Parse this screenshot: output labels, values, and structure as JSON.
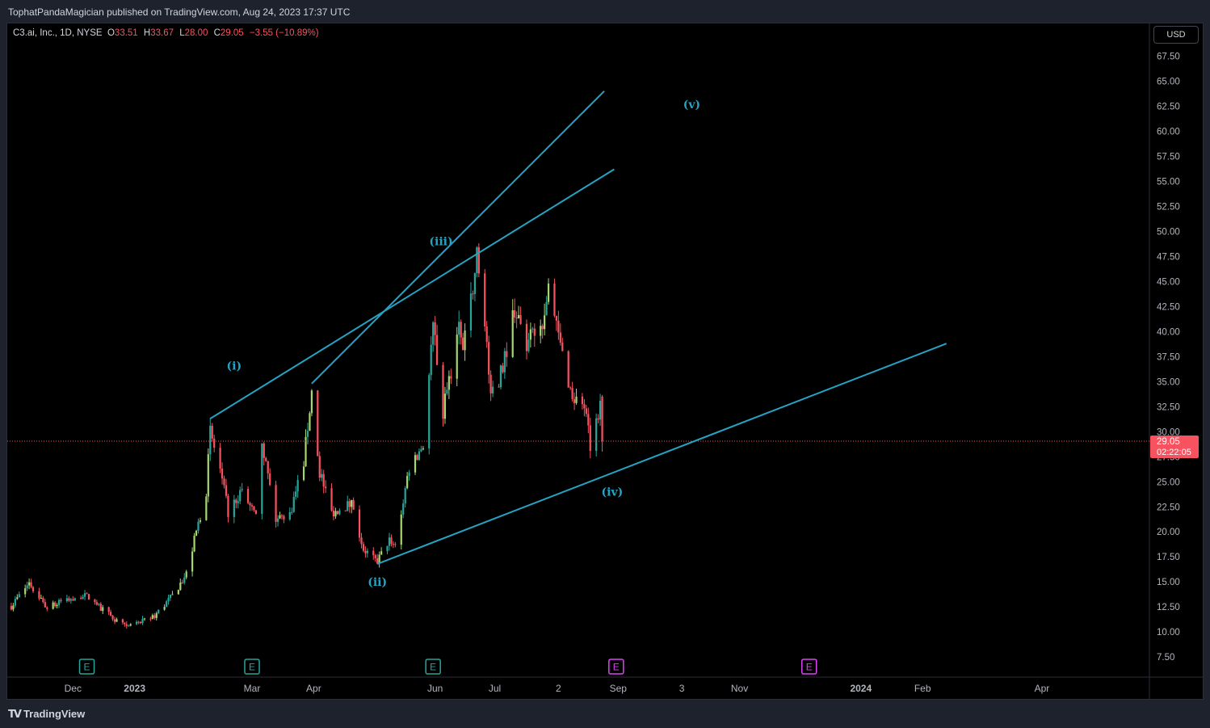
{
  "header": {
    "publisher_line": "TophatPandaMagician published on TradingView.com, Aug 24, 2023 17:37 UTC"
  },
  "legend": {
    "symbol": "C3.ai, Inc., 1D, NYSE",
    "open_label": "O",
    "open": "33.51",
    "high_label": "H",
    "high": "33.67",
    "low_label": "L",
    "low": "28.00",
    "close_label": "C",
    "close": "29.05",
    "change": "−3.55 (−10.89%)"
  },
  "currency": "USD",
  "footer": {
    "brand": "TradingView"
  },
  "colors": {
    "up": "#26a69a",
    "up_alt": "#a5d76e",
    "down": "#f7525f",
    "trendline": "#26a2c2",
    "price_line": "#f7525f",
    "earnings_past": "#26a69a",
    "earnings_future": "#e040fb"
  },
  "chart_data": {
    "type": "candlestick",
    "title": "",
    "xlabel": "",
    "ylabel": "",
    "ylim": [
      5.5,
      68.5
    ],
    "y_ticks": [
      "67.50",
      "65.00",
      "62.50",
      "60.00",
      "57.50",
      "55.00",
      "52.50",
      "50.00",
      "47.50",
      "45.00",
      "42.50",
      "40.00",
      "37.50",
      "35.00",
      "32.50",
      "30.00",
      "27.50",
      "25.00",
      "22.50",
      "20.00",
      "17.50",
      "15.00",
      "12.50",
      "10.00",
      "7.50"
    ],
    "x_ticks": [
      {
        "label": "Dec",
        "date": "2022-12-01"
      },
      {
        "label": "2023",
        "date": "2023-01-01"
      },
      {
        "label": "Mar",
        "date": "2023-03-01"
      },
      {
        "label": "Apr",
        "date": "2023-04-01"
      },
      {
        "label": "Jun",
        "date": "2023-06-01"
      },
      {
        "label": "Jul",
        "date": "2023-07-01"
      },
      {
        "label": "2",
        "date": "2023-08-02"
      },
      {
        "label": "Sep",
        "date": "2023-09-01"
      },
      {
        "label": "3",
        "date": "2023-10-03"
      },
      {
        "label": "Nov",
        "date": "2023-11-01"
      },
      {
        "label": "2024",
        "date": "2024-01-01"
      },
      {
        "label": "Feb",
        "date": "2024-02-01"
      },
      {
        "label": "Apr",
        "date": "2024-04-01"
      }
    ],
    "x_range": [
      "2022-10-29",
      "2024-05-25"
    ],
    "last_price": {
      "value": 29.05,
      "label": "29.05",
      "countdown": "02:22:05"
    },
    "anchors": [
      [
        "2022-10-31",
        12.6
      ],
      [
        "2022-11-09",
        14.9
      ],
      [
        "2022-11-18",
        12.4
      ],
      [
        "2022-11-30",
        13.4
      ],
      [
        "2022-12-08",
        13.6
      ],
      [
        "2022-12-16",
        12.2
      ],
      [
        "2022-12-28",
        10.4
      ],
      [
        "2023-01-10",
        11.4
      ],
      [
        "2023-01-20",
        13.6
      ],
      [
        "2023-01-27",
        15.8
      ],
      [
        "2023-02-06",
        24.2
      ],
      [
        "2023-02-08",
        30.0
      ],
      [
        "2023-02-13",
        26.0
      ],
      [
        "2023-02-17",
        22.0
      ],
      [
        "2023-02-24",
        24.2
      ],
      [
        "2023-03-03",
        21.3
      ],
      [
        "2023-03-06",
        29.0
      ],
      [
        "2023-03-13",
        21.2
      ],
      [
        "2023-03-20",
        21.8
      ],
      [
        "2023-03-27",
        27.0
      ],
      [
        "2023-03-31",
        34.0
      ],
      [
        "2023-04-04",
        26.0
      ],
      [
        "2023-04-10",
        22.0
      ],
      [
        "2023-04-20",
        22.8
      ],
      [
        "2023-04-26",
        18.3
      ],
      [
        "2023-05-03",
        17.0
      ],
      [
        "2023-05-09",
        19.3
      ],
      [
        "2023-05-12",
        18.7
      ],
      [
        "2023-05-19",
        26.5
      ],
      [
        "2023-05-26",
        28.7
      ],
      [
        "2023-05-31",
        40.5
      ],
      [
        "2023-06-05",
        32.0
      ],
      [
        "2023-06-13",
        40.5
      ],
      [
        "2023-06-15",
        38.0
      ],
      [
        "2023-06-20",
        44.5
      ],
      [
        "2023-06-22",
        47.5
      ],
      [
        "2023-06-26",
        41.5
      ],
      [
        "2023-06-29",
        33.0
      ],
      [
        "2023-07-05",
        36.5
      ],
      [
        "2023-07-11",
        42.5
      ],
      [
        "2023-07-17",
        38.5
      ],
      [
        "2023-07-25",
        41.0
      ],
      [
        "2023-07-28",
        44.0
      ],
      [
        "2023-08-03",
        38.5
      ],
      [
        "2023-08-09",
        33.5
      ],
      [
        "2023-08-15",
        32.5
      ],
      [
        "2023-08-18",
        28.5
      ],
      [
        "2023-08-23",
        32.6
      ],
      [
        "2023-08-24",
        29.05
      ]
    ],
    "trendlines": [
      {
        "from": [
          "2023-02-08",
          31.3
        ],
        "to": [
          "2023-08-30",
          56.2
        ]
      },
      {
        "from": [
          "2023-03-31",
          34.8
        ],
        "to": [
          "2023-08-25",
          64.0
        ]
      },
      {
        "from": [
          "2023-05-03",
          16.8
        ],
        "to": [
          "2024-02-13",
          38.8
        ]
      }
    ],
    "wave_labels": [
      {
        "text": "(i)",
        "date": "2023-02-20",
        "y": 36.6
      },
      {
        "text": "(ii)",
        "date": "2023-05-03",
        "y": 15.0
      },
      {
        "text": "(iii)",
        "date": "2023-06-04",
        "y": 49.0
      },
      {
        "text": "(iv)",
        "date": "2023-08-29",
        "y": 24.0
      },
      {
        "text": "(v)",
        "date": "2023-10-08",
        "y": 62.7
      }
    ],
    "earnings": [
      {
        "label": "E",
        "date": "2022-12-08",
        "status": "past"
      },
      {
        "label": "E",
        "date": "2023-03-01",
        "status": "past"
      },
      {
        "label": "E",
        "date": "2023-05-31",
        "status": "past"
      },
      {
        "label": "E",
        "date": "2023-08-31",
        "status": "upcoming"
      },
      {
        "label": "E",
        "date": "2023-12-06",
        "status": "upcoming"
      }
    ]
  }
}
